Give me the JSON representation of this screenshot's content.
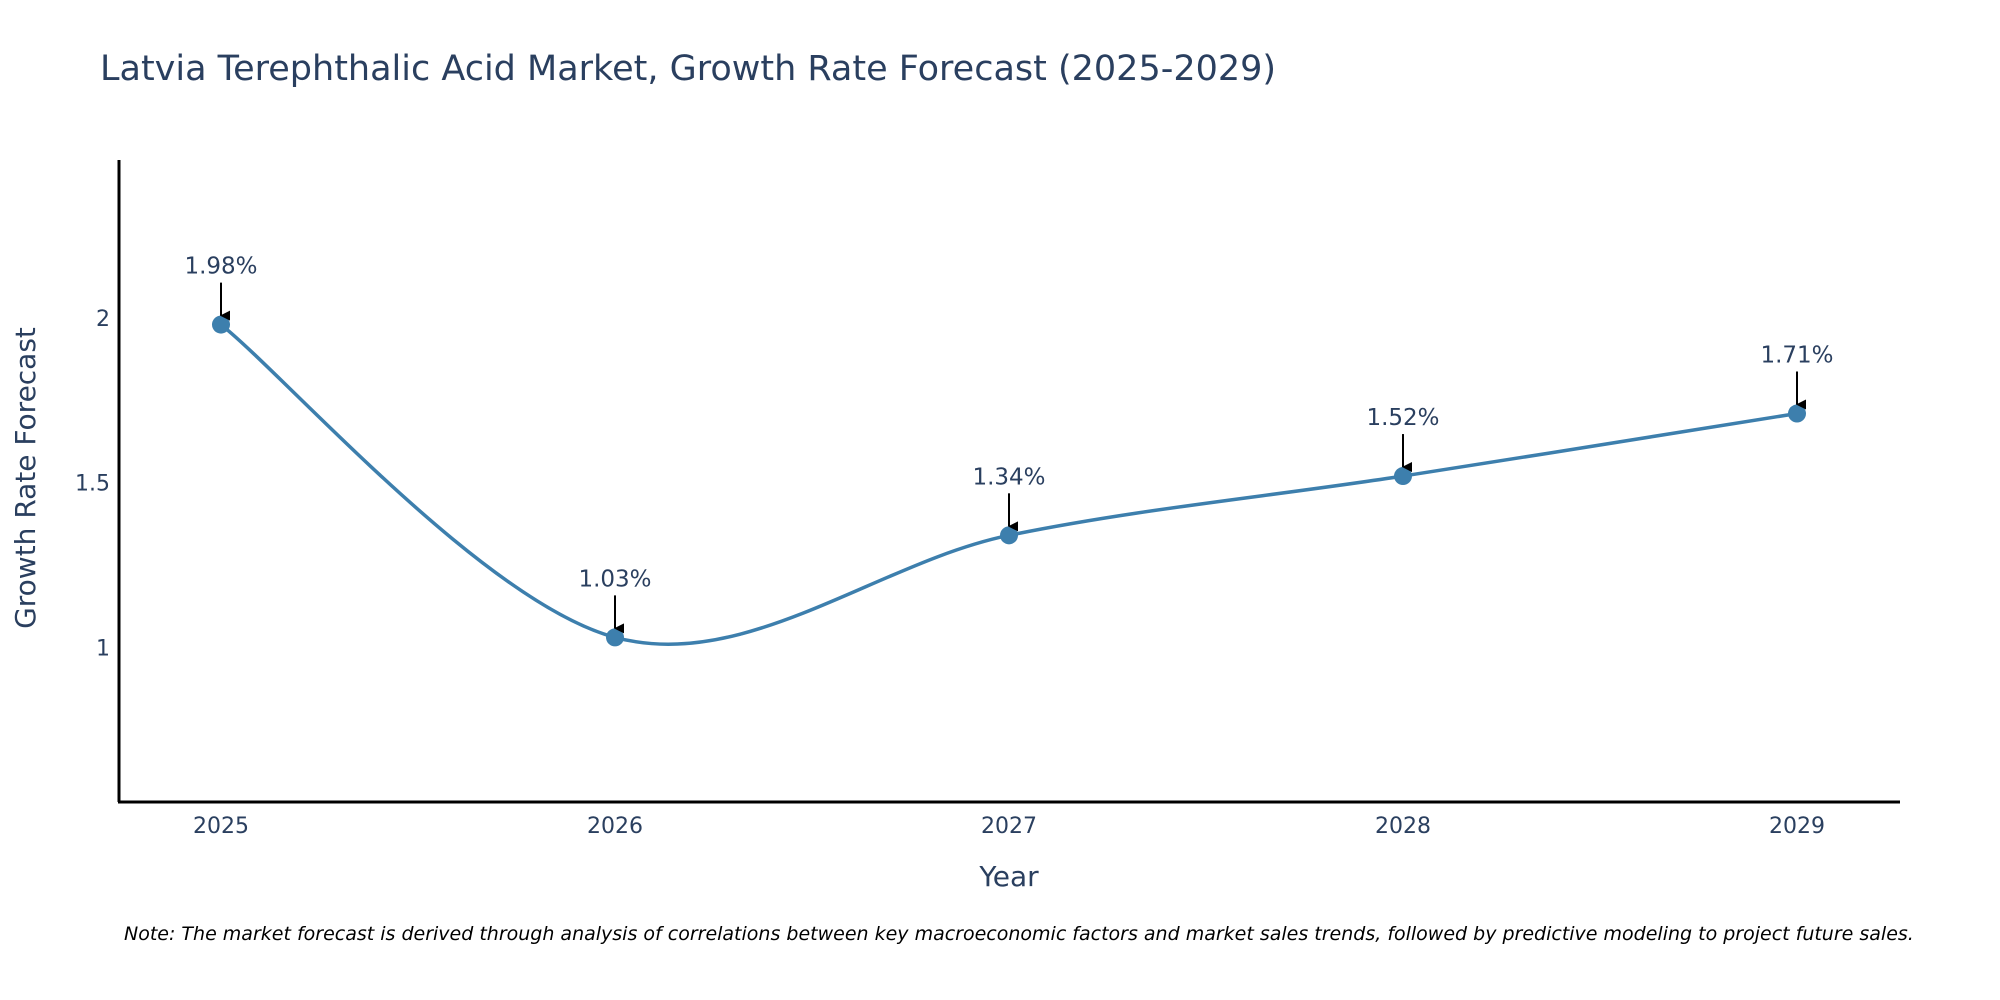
{
  "chart_data": {
    "type": "line",
    "title": "Latvia Terephthalic Acid Market, Growth Rate Forecast (2025-2029)",
    "xlabel": "Year",
    "ylabel": "Growth Rate Forecast",
    "categories": [
      "2025",
      "2026",
      "2027",
      "2028",
      "2029"
    ],
    "series": [
      {
        "name": "Growth Rate Forecast",
        "values": [
          1.98,
          1.03,
          1.34,
          1.52,
          1.71
        ],
        "data_labels": [
          "1.98%",
          "1.03%",
          "1.34%",
          "1.52%",
          "1.71%"
        ]
      }
    ],
    "ylim": [
      0.53,
      2.48
    ],
    "yticks": [
      1,
      1.5,
      2
    ],
    "ytick_labels": [
      "1",
      "1.5",
      "2"
    ],
    "grid": false,
    "line_color": "#3d7fad",
    "marker_color": "#3d7fad",
    "note": "Note: The market forecast is derived through analysis of correlations between key macroeconomic factors and market sales trends, followed by predictive modeling to project future sales."
  }
}
